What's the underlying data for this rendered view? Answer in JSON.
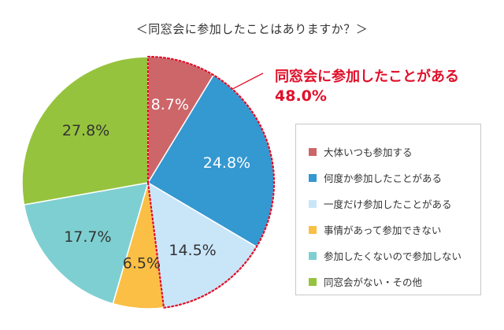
{
  "title": "＜同窓会に参加したことはありますか？＞",
  "callout": {
    "line1": "同窓会に参加したことがある",
    "line2": "48.0%"
  },
  "colors": {
    "callout": "#e0102a",
    "dotted_outline": "#e0102a"
  },
  "chart_data": {
    "type": "pie",
    "start_angle_deg": 0,
    "direction": "clockwise",
    "slices": [
      {
        "name": "大体いつも参加する",
        "value": 8.7,
        "label": "8.7%",
        "color": "#cd6669",
        "label_color": "#ffffff"
      },
      {
        "name": "何度か参加したことがある",
        "value": 24.8,
        "label": "24.8%",
        "color": "#3498d1",
        "label_color": "#ffffff"
      },
      {
        "name": "一度だけ参加したことがある",
        "value": 14.5,
        "label": "14.5%",
        "color": "#c9e6f9",
        "label_color": "#333333"
      },
      {
        "name": "事情があって参加できない",
        "value": 6.5,
        "label": "6.5%",
        "color": "#fbbf45",
        "label_color": "#333333"
      },
      {
        "name": "参加したくないので参加しない",
        "value": 17.7,
        "label": "17.7%",
        "color": "#7ecfd1",
        "label_color": "#333333"
      },
      {
        "name": "同窓会がない・その他",
        "value": 27.8,
        "label": "27.8%",
        "color": "#96c33d",
        "label_color": "#333333"
      }
    ],
    "highlight": {
      "slice_indices": [
        0,
        1,
        2
      ],
      "total": "48.0%"
    },
    "legend": {
      "position": "right"
    }
  }
}
